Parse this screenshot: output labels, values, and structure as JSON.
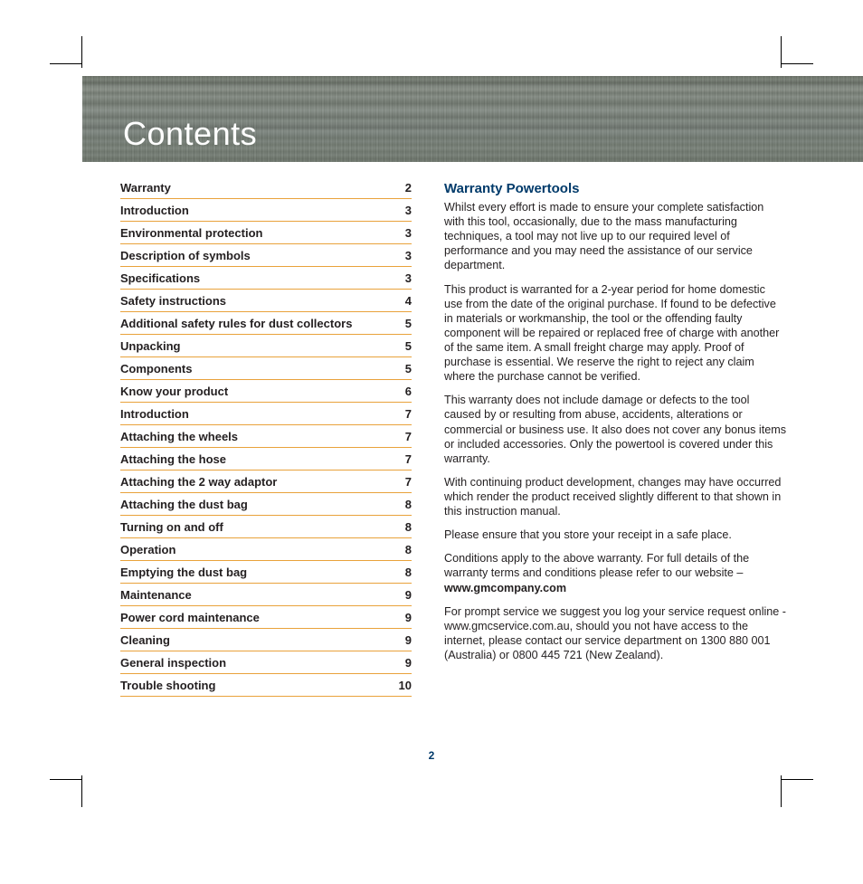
{
  "banner": {
    "title": "Contents",
    "text_color": "#ffffff",
    "title_fontsize": 36
  },
  "colors": {
    "heading_blue": "#003a6a",
    "rule_orange": "#e9a23b",
    "body_text": "#231f20",
    "page_bg": "#ffffff"
  },
  "toc": {
    "items": [
      {
        "title": "Warranty",
        "page": "2"
      },
      {
        "title": "Introduction",
        "page": "3"
      },
      {
        "title": "Environmental protection",
        "page": "3"
      },
      {
        "title": "Description of symbols",
        "page": "3"
      },
      {
        "title": "Specifications",
        "page": "3"
      },
      {
        "title": "Safety instructions",
        "page": "4"
      },
      {
        "title": "Additional safety rules for dust collectors",
        "page": "5"
      },
      {
        "title": "Unpacking",
        "page": "5"
      },
      {
        "title": "Components",
        "page": "5"
      },
      {
        "title": "Know your product",
        "page": "6"
      },
      {
        "title": "Introduction",
        "page": "7"
      },
      {
        "title": "Attaching the wheels",
        "page": "7"
      },
      {
        "title": "Attaching the hose",
        "page": "7"
      },
      {
        "title": "Attaching the 2 way adaptor",
        "page": "7"
      },
      {
        "title": "Attaching the dust bag",
        "page": "8"
      },
      {
        "title": "Turning on and off",
        "page": "8"
      },
      {
        "title": "Operation",
        "page": "8"
      },
      {
        "title": "Emptying the dust bag",
        "page": "8"
      },
      {
        "title": "Maintenance",
        "page": "9"
      },
      {
        "title": "Power cord maintenance",
        "page": "9"
      },
      {
        "title": "Cleaning",
        "page": "9"
      },
      {
        "title": "General inspection",
        "page": "9"
      },
      {
        "title": "Trouble shooting",
        "page": "10"
      }
    ],
    "title_fontsize": 13,
    "page_fontsize": 13,
    "rule_color": "#e9a23b"
  },
  "warranty": {
    "heading": "Warranty Powertools",
    "paragraphs": {
      "p1": "Whilst every effort is made to ensure your complete satisfaction with this tool, occasionally, due to the mass manufacturing techniques, a tool may not live up to our required level of performance and you may need the assistance of our service department.",
      "p2": "This product is warranted for a 2-year period for home domestic use from the date of the original purchase. If found to be defective in materials or workmanship, the tool or the offending faulty component will be repaired or replaced free of charge with another of the same item. A small freight charge may apply. Proof of purchase is essential. We reserve the right to reject any claim where the purchase cannot be verified.",
      "p3": "This warranty does not include damage or defects to the tool caused by or resulting from abuse, accidents, alterations or commercial or business use. It also does not cover any bonus items or included accessories. Only the powertool is covered under this warranty.",
      "p4": "With continuing product development, changes may have occurred which render the product received slightly different to that shown in this instruction manual.",
      "p5": "Please ensure that you store your receipt in a safe place.",
      "p6a": "Conditions apply to the above warranty. For full details of the warranty terms and conditions please refer to our website – ",
      "p6b_bold": "www.gmcompany.com",
      "p7": "For prompt service we suggest you log your service request online - www.gmcservice.com.au, should you not have access to the internet, please contact our service department on 1300 880 001 (Australia) or 0800 445 721 (New Zealand)."
    },
    "heading_color": "#003a6a",
    "heading_fontsize": 15,
    "body_fontsize": 12.6
  },
  "page_number": "2"
}
